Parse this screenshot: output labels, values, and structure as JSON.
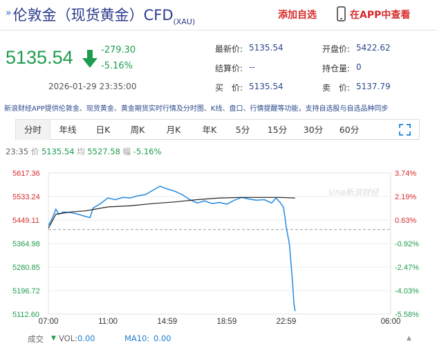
{
  "header": {
    "title": "伦敦金（现货黄金）CFD",
    "title_suffix": "(XAU)",
    "add_watch_label": "添加自选",
    "view_app_label": "在APP中查看"
  },
  "quote": {
    "price": "5135.54",
    "change": "-279.30",
    "change_pct": "-5.16%",
    "datetime": "2026-01-29 23:35:00",
    "fields": [
      {
        "label": "最新价:",
        "value": "5135.54"
      },
      {
        "label": "开盘价:",
        "value": "5422.62"
      },
      {
        "label": "结算价:",
        "value": "--"
      },
      {
        "label": "持仓量:",
        "value": "0"
      },
      {
        "label": "买　价:",
        "value": "5135.54"
      },
      {
        "label": "卖　价:",
        "value": "5137.79"
      }
    ]
  },
  "info_line": "新浪财经APP提供伦敦金、现货黄金、黄金期货实时行情及分时图、K线、盘口、行情提醒等功能，支持自选股与自选品种同步",
  "tabs": [
    "分时",
    "年线",
    "日K",
    "周K",
    "月K",
    "年K",
    "5分",
    "15分",
    "30分",
    "60分"
  ],
  "active_tab": "分时",
  "legend": {
    "time": "23:35",
    "price_label": "价",
    "price": "5135.54",
    "avg_label": "均",
    "avg": "5527.58",
    "range_label": "幅",
    "range": "-5.16%"
  },
  "chart_data": {
    "type": "line",
    "y_left_ticks": [
      "5617.36",
      "5533.24",
      "5449.11",
      "5364.98",
      "5280.85",
      "5196.72",
      "5112.60"
    ],
    "y_right_ticks": [
      "3.74%",
      "2.19%",
      "0.63%",
      "-0.92%",
      "-2.47%",
      "-4.03%",
      "-5.58%"
    ],
    "x_ticks": [
      "07:00",
      "11:00",
      "14:59",
      "18:59",
      "22:59",
      "06:00"
    ],
    "ylim": [
      5112.6,
      5617.36
    ],
    "reference_price": 5415.0,
    "watermark": "sina新浪财经",
    "series": [
      {
        "values": [
          [
            7.0,
            5430
          ],
          [
            7.2,
            5448
          ],
          [
            7.5,
            5488
          ],
          [
            7.7,
            5470
          ],
          [
            8.0,
            5478
          ],
          [
            8.5,
            5476
          ],
          [
            9.0,
            5470
          ],
          [
            9.5,
            5462
          ],
          [
            9.8,
            5458
          ],
          [
            10.0,
            5492
          ],
          [
            10.5,
            5508
          ],
          [
            11.0,
            5528
          ],
          [
            11.5,
            5522
          ],
          [
            12.0,
            5530
          ],
          [
            12.5,
            5528
          ],
          [
            13.0,
            5536
          ],
          [
            13.5,
            5540
          ],
          [
            14.0,
            5555
          ],
          [
            14.5,
            5570
          ],
          [
            15.0,
            5560
          ],
          [
            15.5,
            5552
          ],
          [
            16.0,
            5540
          ],
          [
            16.5,
            5522
          ],
          [
            17.0,
            5510
          ],
          [
            17.5,
            5518
          ],
          [
            18.0,
            5508
          ],
          [
            18.5,
            5512
          ],
          [
            18.99,
            5506
          ],
          [
            19.5,
            5520
          ],
          [
            20.0,
            5530
          ],
          [
            20.5,
            5524
          ],
          [
            21.0,
            5520
          ],
          [
            21.5,
            5522
          ],
          [
            22.0,
            5510
          ],
          [
            22.3,
            5528
          ],
          [
            22.6,
            5510
          ],
          [
            22.8,
            5495
          ],
          [
            23.0,
            5420
          ],
          [
            23.2,
            5360
          ],
          [
            23.4,
            5230
          ],
          [
            23.5,
            5150
          ],
          [
            23.58,
            5123
          ]
        ]
      },
      {
        "values": [
          [
            7.0,
            5420
          ],
          [
            7.5,
            5470
          ],
          [
            8.5,
            5478
          ],
          [
            9.5,
            5482
          ],
          [
            11.0,
            5496
          ],
          [
            12.5,
            5500
          ],
          [
            14.0,
            5508
          ],
          [
            15.5,
            5514
          ],
          [
            17.0,
            5522
          ],
          [
            18.5,
            5528
          ],
          [
            20.0,
            5530
          ],
          [
            21.5,
            5530
          ],
          [
            22.5,
            5530
          ],
          [
            23.0,
            5529
          ],
          [
            23.58,
            5528
          ]
        ]
      }
    ]
  },
  "footer": {
    "vol_title": "成交",
    "vol_label": "VOL:",
    "vol_value": "0.00",
    "ma_label": "MA10:",
    "ma_value": "0.00"
  },
  "colors": {
    "up": "#d62b2b",
    "down": "#1e9c4d",
    "price_line": "#2f8fe0",
    "avg_line": "#222222"
  }
}
